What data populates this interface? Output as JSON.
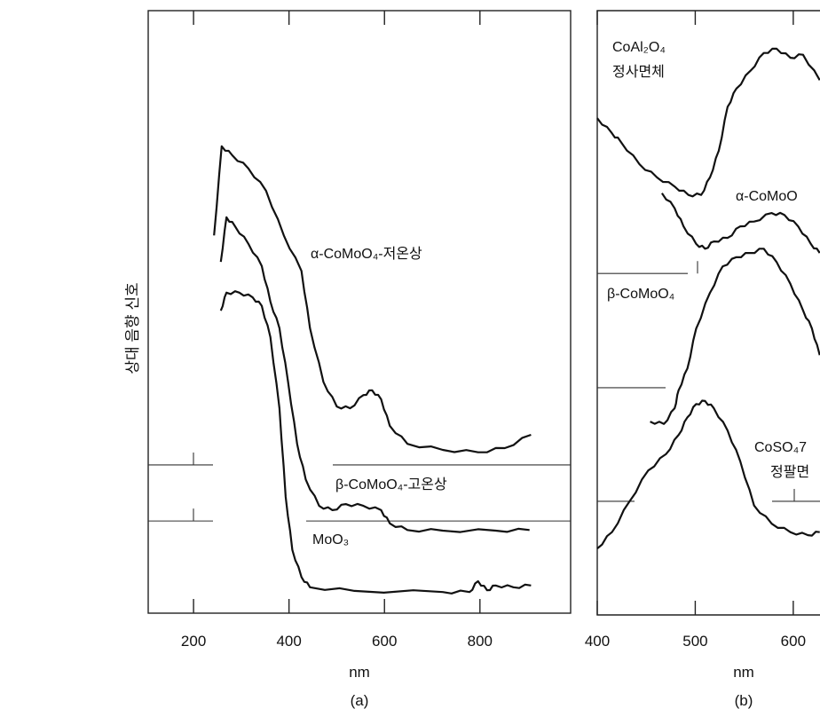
{
  "chart_data": [
    {
      "type": "line",
      "panel_label": "(a)",
      "xlabel": "nm",
      "ylabel": "상대 음향 신호",
      "xlim": [
        105,
        990
      ],
      "ylim": [
        0,
        100
      ],
      "xticks": [
        200,
        400,
        600,
        800
      ],
      "xtick_labels": [
        "200",
        "400",
        "600",
        "800"
      ],
      "grid": false,
      "series": [
        {
          "name": "α-CoMoO₄-저온상",
          "x": [
            243,
            259,
            281,
            315,
            352,
            389,
            426,
            444,
            472,
            500,
            528,
            556,
            574,
            593,
            611,
            648,
            722,
            796,
            852,
            907
          ],
          "y": [
            62.7,
            77.5,
            76,
            73.8,
            70.1,
            62.7,
            56.8,
            47.3,
            38.4,
            34.3,
            34.0,
            36.2,
            37.0,
            35.5,
            31.1,
            28.1,
            27.1,
            26.7,
            27.4,
            29.6
          ]
        },
        {
          "name": "β-CoMoO₄-고온상",
          "x": [
            257,
            269,
            287,
            315,
            343,
            361,
            380,
            398,
            417,
            435,
            463,
            491,
            519,
            556,
            593,
            611,
            648,
            722,
            833,
            904
          ],
          "y": [
            58.3,
            65.7,
            64.2,
            61.3,
            57.6,
            51.7,
            47.3,
            38.4,
            28.1,
            22.2,
            17.8,
            17.1,
            18.1,
            17.8,
            17.1,
            14.9,
            13.8,
            13.7,
            13.7,
            13.8
          ]
        },
        {
          "name": "MoO₃",
          "x": [
            257,
            269,
            296,
            324,
            343,
            361,
            380,
            393,
            407,
            426,
            444,
            537,
            722,
            778,
            796,
            815,
            833,
            870,
            907
          ],
          "y": [
            50.2,
            53.2,
            53.2,
            52.4,
            51.0,
            45.8,
            34.0,
            19.3,
            10.5,
            6.0,
            4.3,
            3.7,
            3.5,
            3.5,
            5.3,
            3.8,
            4.6,
            4.3,
            4.6
          ]
        }
      ],
      "baselines": [
        24.6,
        15.3
      ],
      "labels": {
        "alpha": "α-CoMoO₄-저온상",
        "beta": "β-CoMoO₄-고온상",
        "moo3": "MoO₃"
      }
    },
    {
      "type": "line",
      "panel_label": "(b)",
      "xlabel": "nm",
      "xlim": [
        400,
        630
      ],
      "ylim": [
        0,
        100
      ],
      "xticks": [
        400,
        500,
        600
      ],
      "xtick_labels": [
        "400",
        "500",
        "600"
      ],
      "grid": false,
      "series": [
        {
          "name": "CoAl₂O₄ 정사면체",
          "x": [
            400,
            415,
            424,
            443,
            461,
            479,
            493,
            506,
            515,
            524,
            533,
            542,
            556,
            570,
            583,
            597,
            610,
            627
          ],
          "y": [
            82.2,
            79.7,
            78.3,
            74.6,
            72.4,
            70.9,
            69.5,
            69.5,
            72.4,
            76.8,
            84.1,
            87.1,
            90.0,
            93.0,
            93.7,
            92.2,
            92.7,
            88.5
          ]
        },
        {
          "name": "α-CoMoO",
          "x": [
            466,
            479,
            488,
            501,
            510,
            519,
            533,
            546,
            560,
            578,
            591,
            605,
            618,
            627
          ],
          "y": [
            69.8,
            67.3,
            64.3,
            61.4,
            60.6,
            61.8,
            62.4,
            64.3,
            65.1,
            66.5,
            66.2,
            64.3,
            61.4,
            59.9
          ]
        },
        {
          "name": "β-CoMoO₄",
          "x": [
            454,
            468,
            479,
            483,
            492,
            501,
            515,
            528,
            542,
            556,
            570,
            583,
            597,
            610,
            619,
            627
          ],
          "y": [
            32.0,
            31.6,
            34.2,
            37.2,
            40.8,
            47.4,
            53.3,
            57.7,
            59.2,
            59.9,
            60.6,
            58.4,
            54.8,
            50.4,
            47.4,
            43.0
          ]
        },
        {
          "name": "CoSO₄7 정팔면",
          "x": [
            400,
            415,
            433,
            452,
            470,
            483,
            492,
            501,
            510,
            519,
            533,
            546,
            560,
            578,
            597,
            615,
            627
          ],
          "y": [
            11.0,
            13.7,
            18.8,
            23.9,
            26.6,
            29.8,
            32.7,
            34.9,
            35.4,
            34.2,
            30.5,
            25.4,
            18.1,
            15.1,
            13.7,
            13.2,
            13.7
          ]
        }
      ],
      "baselines": [
        56.5,
        37.6,
        18.8
      ],
      "labels": {
        "coal": "CoAl₂O₄",
        "coal_sub": "정사면체",
        "alpha": "α-CoMoO",
        "beta": "β-CoMoO₄",
        "coso": "CoSO₄7",
        "coso_sub": "정팔면"
      }
    }
  ]
}
